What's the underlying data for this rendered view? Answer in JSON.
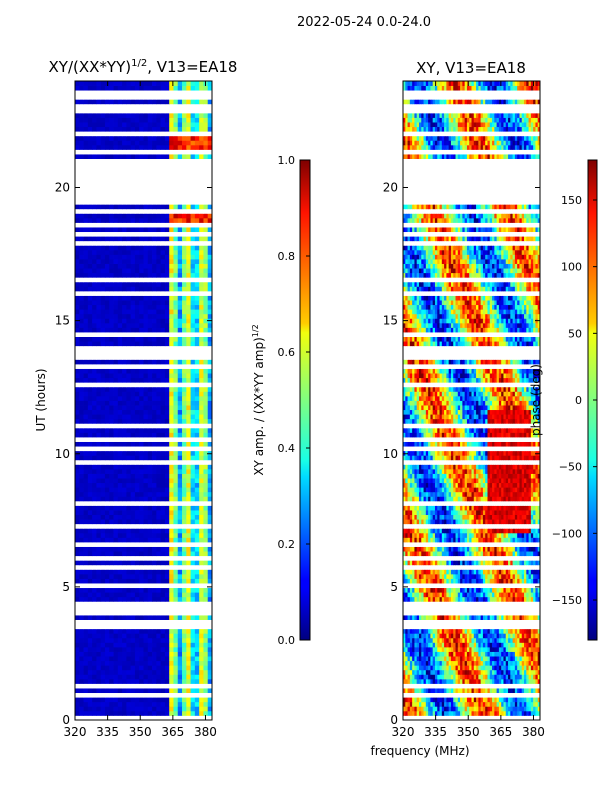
{
  "suptitle": "2022-05-24 0.0-24.0",
  "chart_data": [
    {
      "type": "heatmap",
      "title": "XY/(XX*YY)",
      "title_sup": "1/2",
      "title_suffix": ", V13=EA18",
      "xlabel": "",
      "ylabel": "UT (hours)",
      "xlim": [
        320,
        383
      ],
      "ylim": [
        0,
        24
      ],
      "xticks": [
        320,
        335,
        350,
        365,
        380
      ],
      "yticks": [
        0,
        5,
        10,
        15,
        20
      ],
      "colorbar": {
        "label": "XY amp. / (XX*YY amp)",
        "label_sup": "1/2",
        "range": [
          0.0,
          1.0
        ],
        "ticks": [
          "0.0",
          "0.2",
          "0.4",
          "0.6",
          "0.8",
          "1.0"
        ],
        "tick_values": [
          0.0,
          0.2,
          0.4,
          0.6,
          0.8,
          1.0
        ],
        "colormap": "jet"
      }
    },
    {
      "type": "heatmap",
      "title": "XY, V13=EA18",
      "xlabel": "frequency (MHz)",
      "ylabel": "",
      "xlim": [
        320,
        383
      ],
      "ylim": [
        0,
        24
      ],
      "xticks": [
        320,
        335,
        350,
        365,
        380
      ],
      "yticks": [
        0,
        5,
        10,
        15,
        20
      ],
      "colorbar": {
        "label": "phase (deg)",
        "range": [
          -180,
          180
        ],
        "ticks": [
          "−150",
          "−100",
          "−50",
          "0",
          "50",
          "100",
          "150"
        ],
        "tick_values": [
          -150,
          -100,
          -50,
          0,
          50,
          100,
          150
        ],
        "colormap": "jet"
      }
    }
  ],
  "flagged_gaps_hours": [
    [
      19.3,
      20.5
    ],
    [
      13.6,
      14.1
    ],
    [
      3.5,
      3.7
    ]
  ]
}
